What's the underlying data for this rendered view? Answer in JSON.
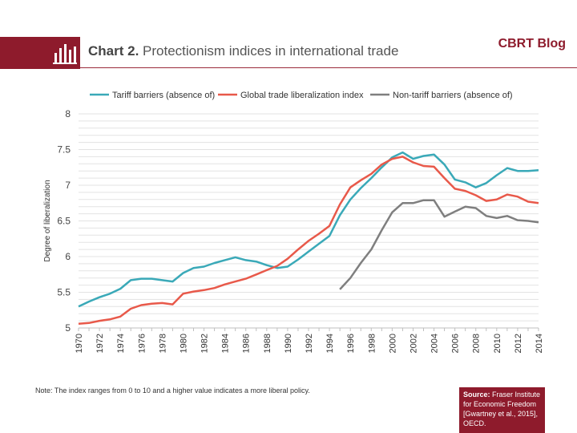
{
  "header": {
    "title_bold": "Chart 2.",
    "title_rest": "Protectionism indices in international trade",
    "blog_label": "CBRT Blog"
  },
  "note": "Note: The index ranges from 0 to 10 and a higher value indicates a more liberal policy.",
  "source": {
    "label": "Source:",
    "text": "Fraser Institute for Economic Freedom [Gwartney et al., 2015], OECD."
  },
  "colors": {
    "brand": "#8e1b2c",
    "tariff": "#3aa9b8",
    "global": "#e8594a",
    "nontariff": "#7f7f7f"
  },
  "chart_data": {
    "type": "line",
    "title": "",
    "xlabel": "",
    "ylabel": "Degree of liberalization",
    "ylim": [
      5,
      8
    ],
    "yticks": [
      "5",
      "5.5",
      "6",
      "6.5",
      "7",
      "7.5",
      "8"
    ],
    "xticks": [
      "1970",
      "1972",
      "1974",
      "1976",
      "1978",
      "1980",
      "1982",
      "1984",
      "1986",
      "1988",
      "1990",
      "1992",
      "1994",
      "1996",
      "1998",
      "2000",
      "2002",
      "2004",
      "2006",
      "2008",
      "2010",
      "2012",
      "2014"
    ],
    "grid": true,
    "legend_position": "top",
    "x": [
      1970,
      1971,
      1972,
      1973,
      1974,
      1975,
      1976,
      1977,
      1978,
      1979,
      1980,
      1981,
      1982,
      1983,
      1984,
      1985,
      1986,
      1987,
      1988,
      1989,
      1990,
      1991,
      1992,
      1993,
      1994,
      1995,
      1996,
      1997,
      1998,
      1999,
      2000,
      2001,
      2002,
      2003,
      2004,
      2005,
      2006,
      2007,
      2008,
      2009,
      2010,
      2011,
      2012,
      2013,
      2014
    ],
    "series": [
      {
        "name": "Tariff barriers (absence of)",
        "color": "#3aa9b8",
        "values": [
          5.3,
          5.37,
          5.43,
          5.48,
          5.55,
          5.67,
          5.69,
          5.69,
          5.67,
          5.65,
          5.77,
          5.84,
          5.86,
          5.91,
          5.95,
          5.99,
          5.95,
          5.93,
          5.88,
          5.84,
          5.86,
          5.96,
          6.07,
          6.18,
          6.29,
          6.58,
          6.8,
          6.96,
          7.1,
          7.25,
          7.39,
          7.46,
          7.37,
          7.41,
          7.43,
          7.29,
          7.08,
          7.04,
          6.97,
          7.03,
          7.14,
          7.24,
          7.2,
          7.2,
          7.21
        ]
      },
      {
        "name": "Global trade liberalization index",
        "color": "#e8594a",
        "values": [
          5.06,
          5.07,
          5.1,
          5.12,
          5.16,
          5.27,
          5.32,
          5.34,
          5.35,
          5.33,
          5.48,
          5.51,
          5.53,
          5.56,
          5.61,
          5.65,
          5.69,
          5.75,
          5.81,
          5.87,
          5.97,
          6.1,
          6.22,
          6.32,
          6.43,
          6.73,
          6.97,
          7.07,
          7.16,
          7.29,
          7.37,
          7.4,
          7.32,
          7.27,
          7.26,
          7.1,
          6.95,
          6.92,
          6.86,
          6.78,
          6.8,
          6.87,
          6.84,
          6.77,
          6.75
        ]
      },
      {
        "name": "Non-tariff barriers (absence of)",
        "color": "#7f7f7f",
        "values": [
          null,
          null,
          null,
          null,
          null,
          null,
          null,
          null,
          null,
          null,
          null,
          null,
          null,
          null,
          null,
          null,
          null,
          null,
          null,
          null,
          null,
          null,
          null,
          null,
          null,
          5.54,
          5.7,
          5.91,
          6.1,
          6.37,
          6.62,
          6.75,
          6.75,
          6.79,
          6.79,
          6.56,
          6.63,
          6.7,
          6.68,
          6.57,
          6.54,
          6.57,
          6.51,
          6.5,
          6.48
        ]
      }
    ]
  }
}
